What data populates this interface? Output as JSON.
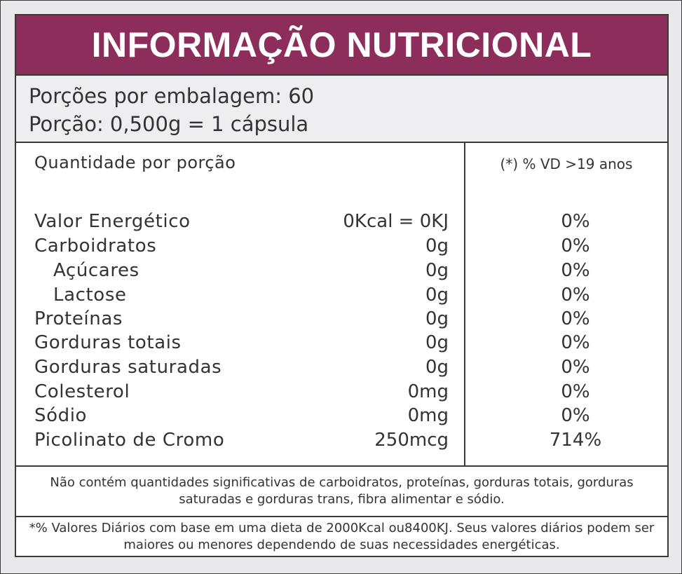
{
  "title": "INFORMAÇÃO NUTRICIONAL",
  "portion": {
    "servings": "Porções por embalagem: 60",
    "serving_size": "Porção: 0,500g = 1 cápsula"
  },
  "table": {
    "qty_header": "Quantidade por porção",
    "vd_header": "(*) % VD  >19 anos",
    "rows": [
      {
        "name": "Valor Energético",
        "amount": "0Kcal = 0KJ",
        "vd": "0%"
      },
      {
        "name": "Carboidratos",
        "amount": "0g",
        "vd": "0%"
      },
      {
        "name": "Açúcares",
        "amount": "0g",
        "vd": "0%"
      },
      {
        "name": "Lactose",
        "amount": "0g",
        "vd": "0%"
      },
      {
        "name": "Proteínas",
        "amount": "0g",
        "vd": "0%"
      },
      {
        "name": "Gorduras totais",
        "amount": "0g",
        "vd": "0%"
      },
      {
        "name": "Gorduras saturadas",
        "amount": "0g",
        "vd": "0%"
      },
      {
        "name": "Colesterol",
        "amount": "0mg",
        "vd": "0%"
      },
      {
        "name": "Sódio",
        "amount": "0mg",
        "vd": "0%"
      },
      {
        "name": "Picolinato de Cromo",
        "amount": "250mcg",
        "vd": "714%"
      }
    ]
  },
  "notes": {
    "not_significant": "Não contém quantidades significativas de carboidratos, proteínas, gorduras totais, gorduras saturadas e gorduras trans, fibra alimentar e sódio.",
    "daily_values": "*% Valores Diários com base em uma dieta de 2000Kcal ou8400KJ. Seus valores diários podem ser maiores ou menores dependendo de suas necessidades energéticas."
  },
  "colors": {
    "header_bg": "#8d2d5b",
    "border": "#3a3a3a"
  }
}
